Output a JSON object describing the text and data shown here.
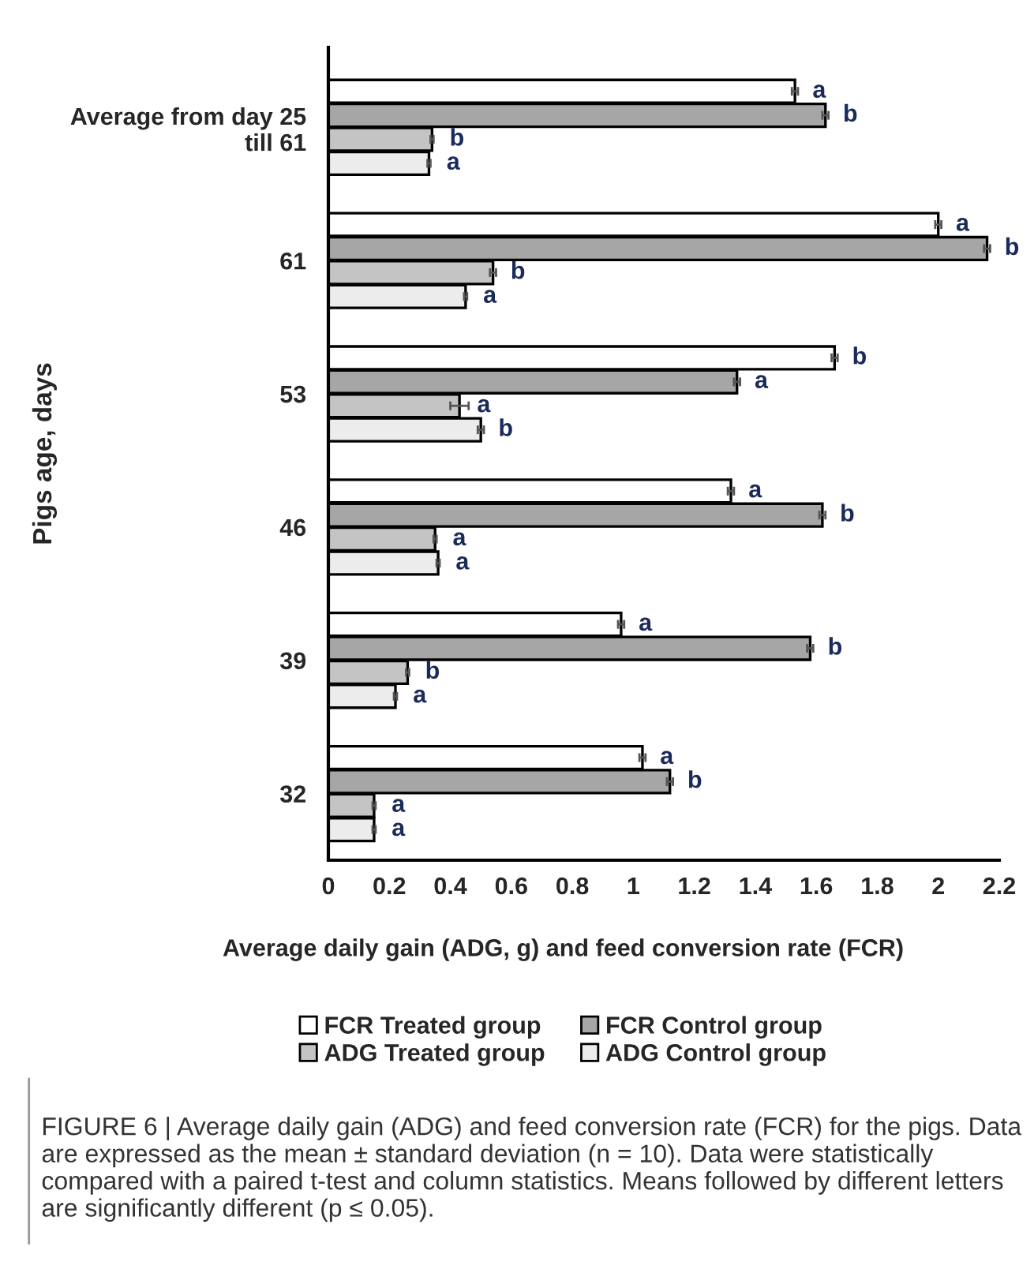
{
  "chart_data": {
    "type": "bar",
    "orientation": "horizontal",
    "categories": [
      "Average from day 25\ntill 61",
      "61",
      "53",
      "46",
      "39",
      "32"
    ],
    "series": [
      {
        "name": "FCR Treated group",
        "color": "#ffffff",
        "values": [
          1.53,
          2.0,
          1.66,
          1.32,
          0.96,
          1.03
        ],
        "errors": [
          0.01,
          0.01,
          0.01,
          0.01,
          0.01,
          0.01
        ],
        "value_labels": [
          "a",
          "a",
          "b",
          "a",
          "a",
          "a"
        ]
      },
      {
        "name": "FCR Control group",
        "color": "#a6a6a6",
        "values": [
          1.63,
          2.16,
          1.34,
          1.62,
          1.58,
          1.12
        ],
        "errors": [
          0.01,
          0.01,
          0.01,
          0.01,
          0.01,
          0.01
        ],
        "value_labels": [
          "b",
          "b",
          "a",
          "b",
          "b",
          "b"
        ]
      },
      {
        "name": "ADG Treated group",
        "color": "#c4c4c4",
        "values": [
          0.34,
          0.54,
          0.43,
          0.35,
          0.26,
          0.15
        ],
        "errors": [
          0.005,
          0.01,
          0.03,
          0.005,
          0.005,
          0.005
        ],
        "value_labels": [
          "b",
          "b",
          "a",
          "a",
          "b",
          "a"
        ]
      },
      {
        "name": "ADG Control group",
        "color": "#ececec",
        "values": [
          0.33,
          0.45,
          0.5,
          0.36,
          0.22,
          0.15
        ],
        "errors": [
          0.005,
          0.005,
          0.01,
          0.005,
          0.005,
          0.005
        ],
        "value_labels": [
          "a",
          "a",
          "b",
          "a",
          "a",
          "a"
        ]
      }
    ],
    "xlim": [
      0,
      2.2
    ],
    "xticks": [
      0,
      0.2,
      0.4,
      0.6,
      0.8,
      1,
      1.2,
      1.4,
      1.6,
      1.8,
      2,
      2.2
    ],
    "xlabel": "Average daily gain (ADG, g) and feed conversion rate (FCR)",
    "ylabel": "Pigs age, days",
    "legend": "bottom",
    "grid": false,
    "annotations": [
      "FIGURE 6 | Average daily gain (ADG) and feed conversion rate (FCR) for the pigs. Data are expressed as the mean ± standard deviation (n = 10). Data were statistically compared with a paired t-test and column statistics. Means followed by different letters are significantly different (p ≤ 0.05)."
    ]
  }
}
